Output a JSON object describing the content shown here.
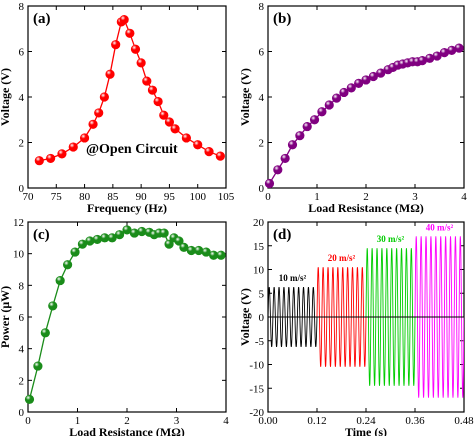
{
  "chart_data": [
    {
      "panel_label": "(a)",
      "type": "line",
      "xlabel": "Frequency (Hz)",
      "ylabel": "Voltage (V)",
      "xlim": [
        70,
        105
      ],
      "ylim": [
        0,
        8
      ],
      "xticks": [
        70,
        75,
        80,
        85,
        90,
        95,
        100,
        105
      ],
      "yticks": [
        0,
        2,
        4,
        6,
        8
      ],
      "annotation": "@Open Circuit",
      "color": "#ff0000",
      "marker": "sphere",
      "series": [
        {
          "x": [
            72,
            74,
            76,
            78,
            80,
            81.5,
            82.5,
            83.5,
            84.5,
            85.5,
            86.5,
            87,
            88,
            89,
            90,
            91,
            92,
            93,
            94,
            95,
            96,
            98,
            100,
            102,
            104
          ],
          "y": [
            1.2,
            1.3,
            1.5,
            1.8,
            2.2,
            2.8,
            3.3,
            4.0,
            5.0,
            6.3,
            7.3,
            7.4,
            6.8,
            6.1,
            5.5,
            4.7,
            4.3,
            3.8,
            3.2,
            2.9,
            2.6,
            2.2,
            1.9,
            1.6,
            1.4
          ]
        }
      ]
    },
    {
      "panel_label": "(b)",
      "type": "line",
      "xlabel": "Load Resistance (MΩ)",
      "ylabel": "Voltage (V)",
      "xlim": [
        0,
        4
      ],
      "ylim": [
        0,
        8
      ],
      "xticks": [
        0,
        1,
        2,
        3,
        4
      ],
      "yticks": [
        0,
        2,
        4,
        6,
        8
      ],
      "color": "#800080",
      "marker": "sphere",
      "series": [
        {
          "x": [
            0.03,
            0.2,
            0.35,
            0.5,
            0.65,
            0.8,
            0.95,
            1.1,
            1.25,
            1.4,
            1.55,
            1.7,
            1.85,
            2.0,
            2.15,
            2.3,
            2.45,
            2.55,
            2.65,
            2.75,
            2.85,
            2.95,
            3.05,
            3.15,
            3.3,
            3.45,
            3.6,
            3.75,
            3.9
          ],
          "y": [
            0.2,
            0.8,
            1.3,
            1.9,
            2.3,
            2.7,
            3.0,
            3.35,
            3.65,
            3.95,
            4.2,
            4.4,
            4.6,
            4.75,
            4.9,
            5.05,
            5.2,
            5.3,
            5.4,
            5.45,
            5.5,
            5.55,
            5.55,
            5.6,
            5.7,
            5.8,
            5.95,
            6.05,
            6.15
          ]
        }
      ]
    },
    {
      "panel_label": "(c)",
      "type": "line",
      "xlabel": "Load Resistance (MΩ)",
      "ylabel": "Power (μW)",
      "xlim": [
        0,
        4
      ],
      "ylim": [
        0,
        12
      ],
      "xticks": [
        0,
        1,
        2,
        3,
        4
      ],
      "yticks": [
        0,
        2,
        4,
        6,
        8,
        10,
        12
      ],
      "color": "#1a8c1a",
      "marker": "sphere",
      "series": [
        {
          "x": [
            0.03,
            0.2,
            0.35,
            0.5,
            0.65,
            0.8,
            0.95,
            1.1,
            1.25,
            1.4,
            1.55,
            1.7,
            1.85,
            2.0,
            2.15,
            2.3,
            2.45,
            2.55,
            2.65,
            2.75,
            2.85,
            2.95,
            3.05,
            3.15,
            3.3,
            3.45,
            3.6,
            3.75,
            3.9
          ],
          "y": [
            0.8,
            2.9,
            5.0,
            6.7,
            8.3,
            9.3,
            10.1,
            10.6,
            10.8,
            10.9,
            11.0,
            11.0,
            11.2,
            11.5,
            11.3,
            11.4,
            11.35,
            11.2,
            11.3,
            11.3,
            10.6,
            11.0,
            10.8,
            10.4,
            10.2,
            10.2,
            10.1,
            9.9,
            9.9
          ]
        }
      ]
    },
    {
      "panel_label": "(d)",
      "type": "line",
      "xlabel": "Time (s)",
      "ylabel": "Voltage (V)",
      "xlim": [
        0,
        0.48
      ],
      "ylim": [
        -20,
        20
      ],
      "xticks": [
        0.0,
        0.12,
        0.24,
        0.36,
        0.48
      ],
      "xtick_labels": [
        "0.00",
        "0.12",
        "0.24",
        "0.36",
        "0.48"
      ],
      "yticks": [
        -20,
        -15,
        -10,
        -5,
        0,
        5,
        10,
        15,
        20
      ],
      "series": [
        {
          "name": "10 m/s²",
          "t_start": 0.0,
          "t_end": 0.12,
          "amplitude": 6.3,
          "frequency_hz": 87,
          "color": "#000000"
        },
        {
          "name": "20 m/s²",
          "t_start": 0.12,
          "t_end": 0.24,
          "amplitude": 10.5,
          "frequency_hz": 87,
          "color": "#ff0000"
        },
        {
          "name": "30 m/s²",
          "t_start": 0.24,
          "t_end": 0.36,
          "amplitude": 14.5,
          "frequency_hz": 87,
          "color": "#00cc00"
        },
        {
          "name": "40 m/s²",
          "t_start": 0.36,
          "t_end": 0.48,
          "amplitude": 17.0,
          "frequency_hz": 87,
          "color": "#ff00ff"
        }
      ]
    }
  ]
}
